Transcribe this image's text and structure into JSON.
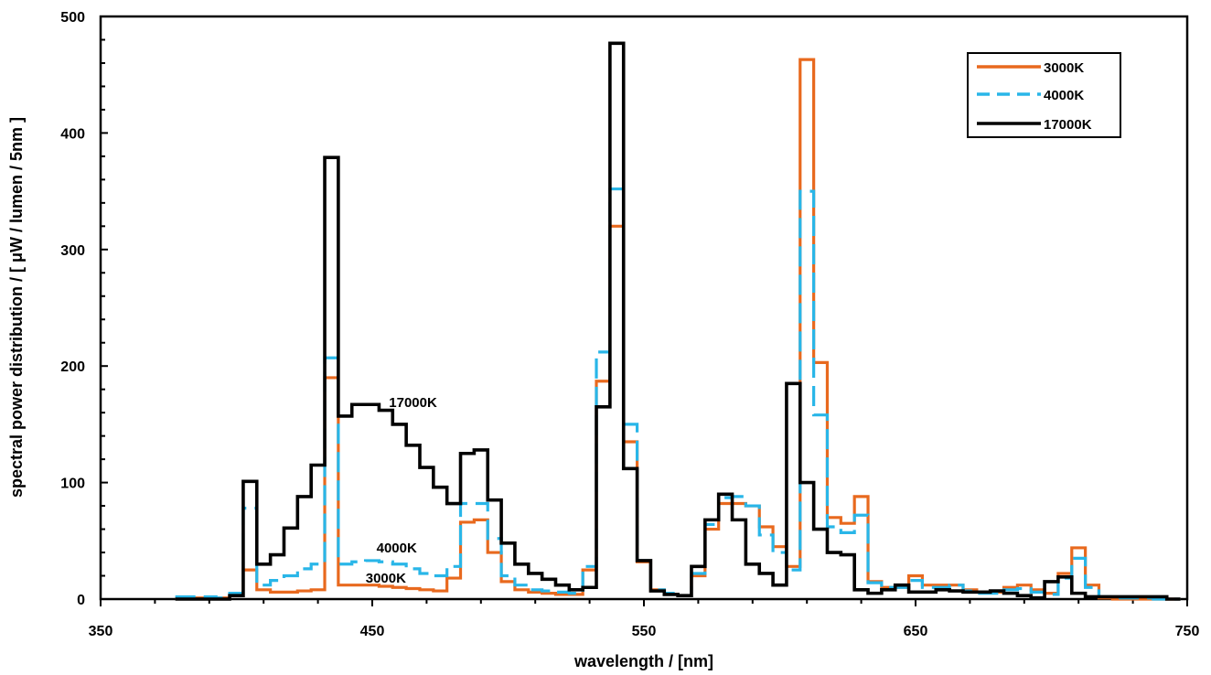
{
  "chart_data": {
    "type": "line",
    "step": true,
    "xlabel": "wavelength / [nm]",
    "ylabel": "spectral power distribution /   [ μW / lumen / 5nm ]",
    "xlim": [
      350,
      750
    ],
    "ylim": [
      0,
      500
    ],
    "xticks": [
      350,
      450,
      550,
      650,
      750
    ],
    "yticks": [
      0,
      100,
      200,
      300,
      400,
      500
    ],
    "grid": false,
    "legend_position": "top-right",
    "x": [
      380,
      385,
      390,
      395,
      400,
      405,
      410,
      415,
      420,
      425,
      430,
      435,
      440,
      445,
      450,
      455,
      460,
      465,
      470,
      475,
      480,
      485,
      490,
      495,
      500,
      505,
      510,
      515,
      520,
      525,
      530,
      535,
      540,
      545,
      550,
      555,
      560,
      565,
      570,
      575,
      580,
      585,
      590,
      595,
      600,
      605,
      610,
      615,
      620,
      625,
      630,
      635,
      640,
      645,
      650,
      655,
      660,
      665,
      670,
      675,
      680,
      685,
      690,
      695,
      700,
      705,
      710,
      715,
      720,
      725,
      730,
      735,
      740,
      745
    ],
    "series": [
      {
        "name": "3000K",
        "color": "#e8691e",
        "dash": "solid",
        "values": [
          1,
          1,
          1,
          1,
          3,
          25,
          8,
          6,
          6,
          7,
          8,
          190,
          12,
          12,
          12,
          11,
          10,
          9,
          8,
          7,
          18,
          66,
          68,
          40,
          15,
          8,
          6,
          5,
          4,
          4,
          25,
          187,
          320,
          135,
          32,
          8,
          4,
          3,
          20,
          60,
          82,
          82,
          80,
          62,
          45,
          28,
          463,
          203,
          70,
          65,
          88,
          15,
          10,
          10,
          20,
          12,
          12,
          12,
          8,
          6,
          6,
          10,
          12,
          8,
          5,
          22,
          44,
          12,
          1,
          0,
          0,
          0,
          0,
          0
        ]
      },
      {
        "name": "4000K",
        "color": "#29b6e8",
        "dash": "dashed",
        "values": [
          2,
          2,
          2,
          1,
          5,
          78,
          12,
          16,
          20,
          26,
          30,
          207,
          30,
          32,
          33,
          32,
          30,
          26,
          22,
          20,
          28,
          82,
          82,
          52,
          20,
          12,
          8,
          7,
          6,
          5,
          28,
          212,
          352,
          150,
          33,
          8,
          5,
          3,
          22,
          64,
          87,
          88,
          80,
          55,
          40,
          25,
          350,
          158,
          62,
          57,
          72,
          14,
          10,
          10,
          16,
          10,
          10,
          12,
          7,
          5,
          5,
          8,
          9,
          6,
          4,
          18,
          35,
          10,
          2,
          1,
          1,
          1,
          0,
          0
        ]
      },
      {
        "name": "17000K",
        "color": "#000000",
        "dash": "solid",
        "values": [
          0,
          0,
          0,
          0,
          3,
          101,
          30,
          38,
          61,
          88,
          115,
          379,
          157,
          167,
          167,
          162,
          150,
          132,
          113,
          96,
          82,
          125,
          128,
          85,
          48,
          30,
          22,
          17,
          12,
          8,
          10,
          165,
          477,
          112,
          33,
          7,
          4,
          3,
          28,
          68,
          90,
          68,
          30,
          22,
          12,
          185,
          100,
          60,
          40,
          38,
          8,
          5,
          8,
          12,
          6,
          6,
          8,
          7,
          6,
          6,
          7,
          5,
          3,
          1,
          15,
          19,
          5,
          2,
          2,
          2,
          2,
          2,
          2,
          0
        ]
      }
    ],
    "annotations": [
      {
        "text": "17000K",
        "x": 465,
        "y": 165
      },
      {
        "text": "4000K",
        "x": 459,
        "y": 40
      },
      {
        "text": "3000K",
        "x": 455,
        "y": 14
      }
    ]
  }
}
